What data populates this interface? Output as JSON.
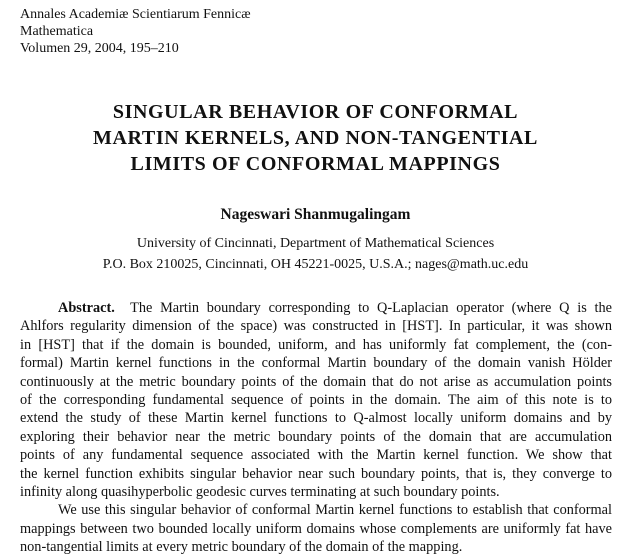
{
  "journal": {
    "name": "Annales Academiæ Scientiarum Fennicæ",
    "series": "Mathematica",
    "volume": "Volumen 29, 2004, 195–210"
  },
  "title_lines": [
    "SINGULAR BEHAVIOR OF CONFORMAL",
    "MARTIN KERNELS, AND NON-TANGENTIAL",
    "LIMITS OF CONFORMAL MAPPINGS"
  ],
  "author": "Nageswari Shanmugalingam",
  "affiliation_lines": [
    "University of Cincinnati, Department of Mathematical Sciences",
    "P.O. Box 210025, Cincinnati, OH 45221-0025, U.S.A.; nages@math.uc.edu"
  ],
  "abstract": {
    "label": "Abstract.",
    "lines": [
      "The Martin boundary corresponding to Q-Laplacian operator (where Q is the",
      "Ahlfors regularity dimension of the space) was constructed in [HST]. In particular, it was shown",
      "in [HST] that if the domain is bounded, uniform, and has uniformly fat complement, the (con-",
      "formal) Martin kernel functions in the conformal Martin boundary of the domain vanish Hölder",
      "continuously at the metric boundary points of the domain that do not arise as accumulation points",
      "of the corresponding fundamental sequence of points in the domain.  The aim of this note is to",
      "extend the study of these Martin kernel functions to Q-almost locally uniform domains and by",
      "exploring their behavior near the metric boundary points of the domain that are accumulation",
      "points of any fundamental sequence associated with the Martin kernel function.  We show that",
      "the kernel function exhibits singular behavior near such boundary points, that is, they converge to",
      "infinity along quasihyperbolic geodesic curves terminating at such boundary points."
    ],
    "paragraph2_lines": [
      "We use this singular behavior of conformal Martin kernel functions to establish that conformal",
      "mappings between two bounded locally uniform domains whose complements are uniformly fat have",
      "non-tangential limits at every metric boundary of the domain of the mapping."
    ]
  }
}
